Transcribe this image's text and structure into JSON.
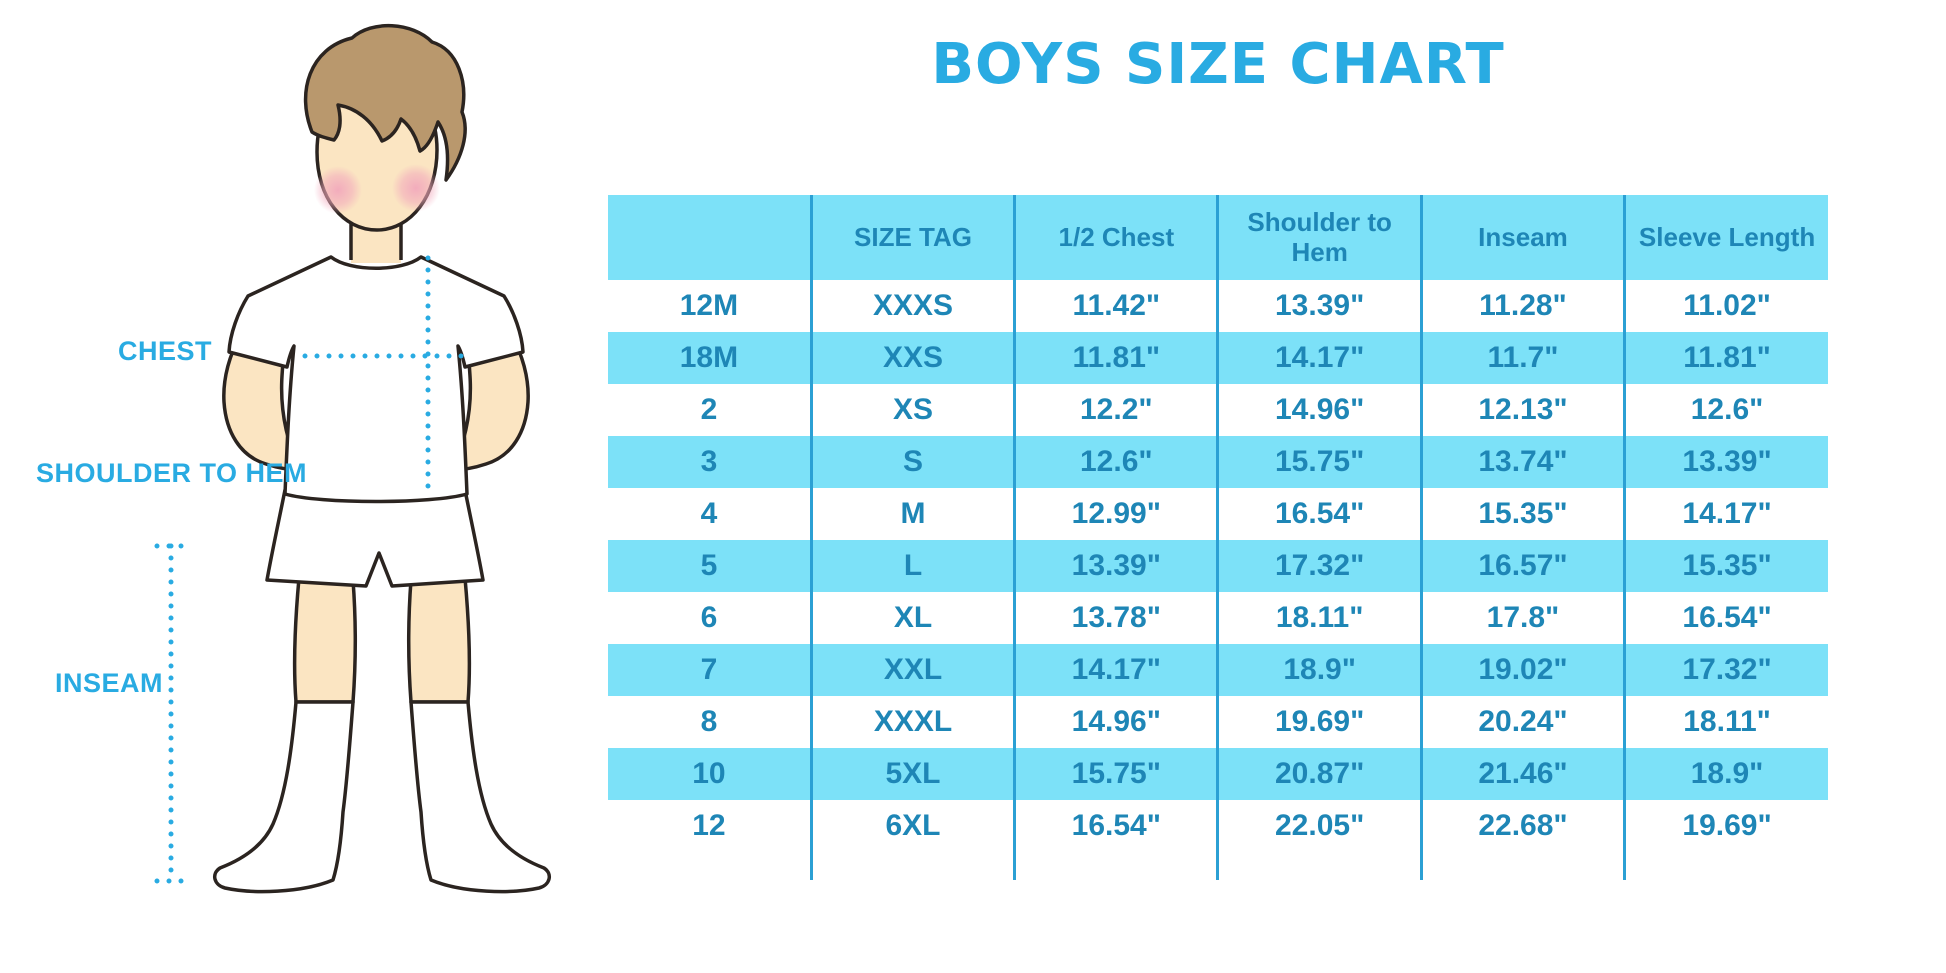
{
  "title": "BOYS SIZE CHART",
  "figure": {
    "labels": {
      "chest": "CHEST",
      "shoulder_to_hem": "SHOULDER TO HEM",
      "inseam": "INSEAM"
    }
  },
  "chart_data": {
    "type": "table",
    "title": "BOYS SIZE CHART",
    "columns": [
      "",
      "SIZE TAG",
      "1/2 Chest",
      "Shoulder to Hem",
      "Inseam",
      "Sleeve Length"
    ],
    "rows": [
      [
        "12M",
        "XXXS",
        "11.42\"",
        "13.39\"",
        "11.28\"",
        "11.02\""
      ],
      [
        "18M",
        "XXS",
        "11.81\"",
        "14.17\"",
        "11.7\"",
        "11.81\""
      ],
      [
        "2",
        "XS",
        "12.2\"",
        "14.96\"",
        "12.13\"",
        "12.6\""
      ],
      [
        "3",
        "S",
        "12.6\"",
        "15.75\"",
        "13.74\"",
        "13.39\""
      ],
      [
        "4",
        "M",
        "12.99\"",
        "16.54\"",
        "15.35\"",
        "14.17\""
      ],
      [
        "5",
        "L",
        "13.39\"",
        "17.32\"",
        "16.57\"",
        "15.35\""
      ],
      [
        "6",
        "XL",
        "13.78\"",
        "18.11\"",
        "17.8\"",
        "16.54\""
      ],
      [
        "7",
        "XXL",
        "14.17\"",
        "18.9\"",
        "19.02\"",
        "17.32\""
      ],
      [
        "8",
        "XXXL",
        "14.96\"",
        "19.69\"",
        "20.24\"",
        "18.11\""
      ],
      [
        "10",
        "5XL",
        "15.75\"",
        "20.87\"",
        "21.46\"",
        "18.9\""
      ],
      [
        "12",
        "6XL",
        "16.54\"",
        "22.05\"",
        "22.68\"",
        "19.69\""
      ]
    ]
  },
  "colors": {
    "accent_blue": "#29ABE2",
    "stripe_blue": "#7CE1F8",
    "divider_blue": "#2BA0D4",
    "table_text_blue": "#1E86B6",
    "skin": "#FBE5C2",
    "hair": "#B9986D",
    "cheek": "#F2A9BC",
    "outline": "#2B2420"
  }
}
